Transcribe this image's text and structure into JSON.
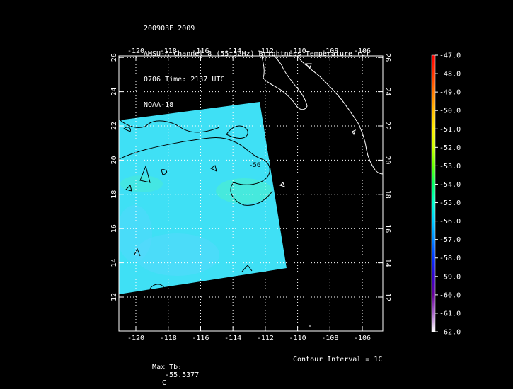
{
  "header": {
    "line1": "200903E 2009",
    "line2": "AMSU-A Channel 8 (55.5GHz) Brightness Temperature (C)",
    "line3": "0706 Time: 2137 UTC",
    "line4": "NOAA-18"
  },
  "map": {
    "lon_labels": [
      "-120",
      "-118",
      "-116",
      "-114",
      "-112",
      "-110",
      "-108",
      "-106"
    ],
    "lat_labels": [
      "12",
      "14",
      "16",
      "18",
      "20",
      "22",
      "24",
      "26"
    ],
    "contour_label": "-56",
    "colors": {
      "background": "#000000",
      "swath_main": "#3fe0f5",
      "swath_cool": "#5ad8ff",
      "swath_warm": "#4df0c8",
      "coastline": "#ffffff",
      "contour": "#000000",
      "grid": "#ffffff"
    }
  },
  "colorbar": {
    "labels": [
      "-47.0",
      "-48.0",
      "-49.0",
      "-50.0",
      "-51.0",
      "-52.0",
      "-53.0",
      "-54.0",
      "-55.0",
      "-56.0",
      "-57.0",
      "-58.0",
      "-59.0",
      "-60.0",
      "-61.0",
      "-62.0"
    ],
    "colors": [
      "#ff0000",
      "#ff3300",
      "#ff7700",
      "#ffbb00",
      "#ffee00",
      "#ccff00",
      "#66ff00",
      "#00ff66",
      "#00ffcc",
      "#00ccff",
      "#0088ff",
      "#0033ff",
      "#3300cc",
      "#660099",
      "#aa66cc",
      "#ffffff"
    ]
  },
  "footer": {
    "max_label": "Max Tb:",
    "max_value": "-55.5377",
    "max_unit": "C",
    "contour_interval": "Contour Interval = 1C"
  }
}
